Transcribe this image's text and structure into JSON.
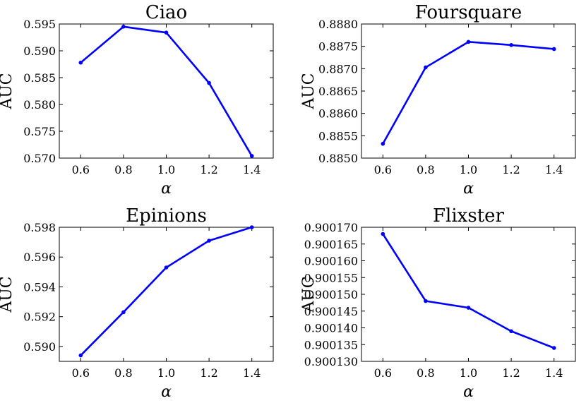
{
  "chart_data": [
    {
      "type": "line",
      "title": "Ciao",
      "xlabel": "α",
      "ylabel": "AUC",
      "x": [
        0.6,
        0.8,
        1.0,
        1.2,
        1.4
      ],
      "xticks": [
        "0.6",
        "0.8",
        "1.0",
        "1.2",
        "1.4"
      ],
      "xlim": [
        0.5,
        1.5
      ],
      "ylim": [
        0.57,
        0.595
      ],
      "yticks": [
        "0.570",
        "0.575",
        "0.580",
        "0.585",
        "0.590",
        "0.595"
      ],
      "series": [
        {
          "values": [
            0.5878,
            0.5945,
            0.5934,
            0.584,
            0.5704
          ],
          "color": "#0000ff"
        }
      ]
    },
    {
      "type": "line",
      "title": "Foursquare",
      "xlabel": "α",
      "ylabel": "AUC",
      "x": [
        0.6,
        0.8,
        1.0,
        1.2,
        1.4
      ],
      "xticks": [
        "0.6",
        "0.8",
        "1.0",
        "1.2",
        "1.4"
      ],
      "xlim": [
        0.5,
        1.5
      ],
      "ylim": [
        0.885,
        0.888
      ],
      "yticks": [
        "0.8850",
        "0.8855",
        "0.8860",
        "0.8865",
        "0.8870",
        "0.8875",
        "0.8880"
      ],
      "series": [
        {
          "values": [
            0.88532,
            0.88703,
            0.8876,
            0.88753,
            0.88744
          ],
          "color": "#0000ff"
        }
      ]
    },
    {
      "type": "line",
      "title": "Epinions",
      "xlabel": "α",
      "ylabel": "AUC",
      "x": [
        0.6,
        0.8,
        1.0,
        1.2,
        1.4
      ],
      "xticks": [
        "0.6",
        "0.8",
        "1.0",
        "1.2",
        "1.4"
      ],
      "xlim": [
        0.5,
        1.5
      ],
      "ylim": [
        0.589,
        0.598
      ],
      "yticks": [
        "0.590",
        "0.592",
        "0.594",
        "0.596",
        "0.598"
      ],
      "series": [
        {
          "values": [
            0.5894,
            0.5923,
            0.5953,
            0.5971,
            0.598
          ],
          "color": "#0000ff"
        }
      ]
    },
    {
      "type": "line",
      "title": "Flixster",
      "xlabel": "α",
      "ylabel": "AUC",
      "x": [
        0.6,
        0.8,
        1.0,
        1.2,
        1.4
      ],
      "xticks": [
        "0.6",
        "0.8",
        "1.0",
        "1.2",
        "1.4"
      ],
      "xlim": [
        0.5,
        1.5
      ],
      "ylim": [
        0.90013,
        0.90017
      ],
      "yticks": [
        "0.900130",
        "0.900135",
        "0.900140",
        "0.900145",
        "0.900150",
        "0.900155",
        "0.900160",
        "0.900165",
        "0.900170"
      ],
      "series": [
        {
          "values": [
            0.900168,
            0.900148,
            0.900146,
            0.900139,
            0.900134
          ],
          "color": "#0000ff"
        }
      ]
    }
  ]
}
